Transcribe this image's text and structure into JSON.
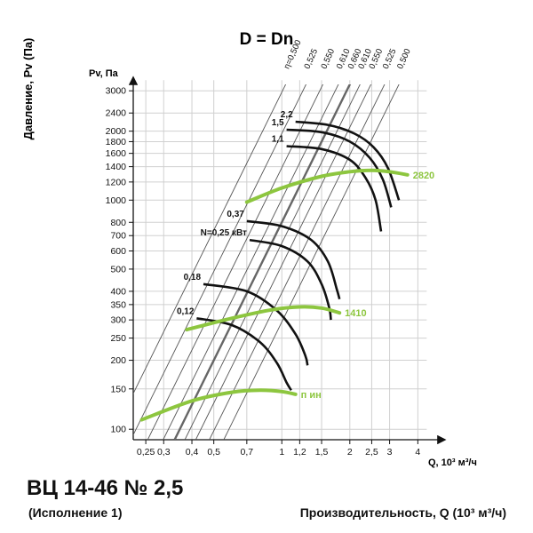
{
  "product": {
    "model": "ВЦ 14-46 № 2,5",
    "variant": "(Исполнение 1)"
  },
  "x_axis_caption": "Производительность, Q (10³ м³/ч)",
  "chart_data": {
    "type": "line",
    "title": "D = Dn",
    "ylabel": "Давление, Pv (Па)",
    "y_unit": "Pv, Па",
    "x_unit": "Q, 10³ м³/ч",
    "x_scale": "log",
    "y_scale": "log",
    "xlim": [
      0.22,
      5
    ],
    "ylim": [
      90,
      3200
    ],
    "grid": true,
    "x_ticks": [
      0.25,
      0.3,
      0.4,
      0.5,
      0.7,
      1,
      1.2,
      1.5,
      2,
      2.5,
      3,
      4
    ],
    "x_tick_labels": [
      "0,25",
      "0,3",
      "0,4",
      "0,5",
      "0,7",
      "1",
      "1,2",
      "1,5",
      "2",
      "2,5",
      "3",
      "4"
    ],
    "y_ticks": [
      100,
      150,
      200,
      250,
      300,
      350,
      400,
      500,
      600,
      700,
      800,
      1000,
      1200,
      1400,
      1600,
      1800,
      2000,
      2400,
      3000
    ],
    "efficiency_lines": [
      {
        "label": "η=0,500",
        "q_at_3200": 1.04
      },
      {
        "label": "0,525",
        "q_at_3200": 1.28
      },
      {
        "label": "0,550",
        "q_at_3200": 1.52
      },
      {
        "label": "0,610",
        "q_at_3200": 1.78
      },
      {
        "label": "0,660",
        "q_at_3200": 2.0
      },
      {
        "label": "0,610",
        "q_at_3200": 2.22
      },
      {
        "label": "0,550",
        "q_at_3200": 2.48
      },
      {
        "label": "0,525",
        "q_at_3200": 2.85
      },
      {
        "label": "0,500",
        "q_at_3200": 3.3
      }
    ],
    "speed_curves": [
      {
        "name": "2820",
        "color": "#8dc63f",
        "points": [
          [
            0.7,
            980
          ],
          [
            1.0,
            1130
          ],
          [
            1.5,
            1270
          ],
          [
            2.0,
            1330
          ],
          [
            2.5,
            1350
          ],
          [
            3.0,
            1330
          ],
          [
            3.6,
            1290
          ]
        ]
      },
      {
        "name": "1410",
        "color": "#8dc63f",
        "points": [
          [
            0.38,
            272
          ],
          [
            0.6,
            305
          ],
          [
            0.9,
            332
          ],
          [
            1.2,
            342
          ],
          [
            1.5,
            338
          ],
          [
            1.8,
            322
          ]
        ]
      },
      {
        "name": "п                  ин",
        "color": "#8dc63f",
        "points": [
          [
            0.24,
            110
          ],
          [
            0.4,
            133
          ],
          [
            0.6,
            145
          ],
          [
            0.8,
            148
          ],
          [
            1.0,
            146
          ],
          [
            1.15,
            142
          ]
        ]
      }
    ],
    "power_curves": [
      {
        "label": "2,2",
        "points": [
          [
            1.15,
            2200
          ],
          [
            1.6,
            2130
          ],
          [
            2.1,
            1950
          ],
          [
            2.55,
            1700
          ],
          [
            2.95,
            1380
          ],
          [
            3.3,
            1000
          ]
        ]
      },
      {
        "label": "1,5",
        "points": [
          [
            1.05,
            2030
          ],
          [
            1.5,
            1980
          ],
          [
            2.0,
            1800
          ],
          [
            2.45,
            1530
          ],
          [
            2.8,
            1230
          ],
          [
            3.05,
            930
          ]
        ]
      },
      {
        "label": "1,1",
        "points": [
          [
            1.05,
            1720
          ],
          [
            1.5,
            1670
          ],
          [
            2.0,
            1500
          ],
          [
            2.35,
            1250
          ],
          [
            2.6,
            1000
          ],
          [
            2.75,
            730
          ]
        ]
      },
      {
        "label": "0,37",
        "points": [
          [
            0.7,
            810
          ],
          [
            1.0,
            770
          ],
          [
            1.35,
            670
          ],
          [
            1.6,
            540
          ],
          [
            1.75,
            410
          ],
          [
            1.8,
            370
          ]
        ]
      },
      {
        "label": "N=0,25 кВт",
        "points": [
          [
            0.72,
            670
          ],
          [
            1.0,
            630
          ],
          [
            1.3,
            540
          ],
          [
            1.5,
            430
          ],
          [
            1.62,
            340
          ],
          [
            1.65,
            300
          ]
        ]
      },
      {
        "label": "0,18",
        "points": [
          [
            0.45,
            430
          ],
          [
            0.7,
            400
          ],
          [
            0.95,
            330
          ],
          [
            1.15,
            260
          ],
          [
            1.27,
            210
          ],
          [
            1.3,
            190
          ]
        ]
      },
      {
        "label": "0,12",
        "points": [
          [
            0.42,
            305
          ],
          [
            0.6,
            285
          ],
          [
            0.8,
            240
          ],
          [
            0.95,
            195
          ],
          [
            1.05,
            160
          ],
          [
            1.1,
            148
          ]
        ]
      }
    ]
  }
}
